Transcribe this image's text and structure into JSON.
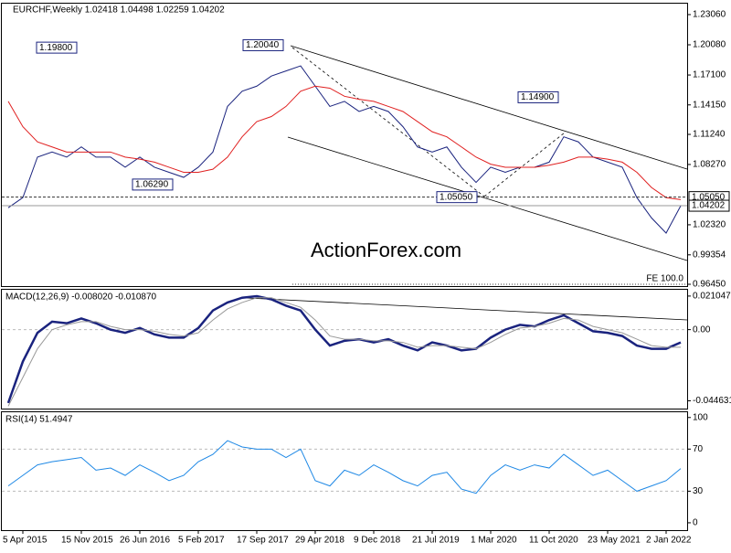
{
  "chart_data": [
    {
      "type": "line",
      "title": "EURCHF,Weekly 1.02418 1.04498 1.02259 1.04202",
      "watermark": "ActionForex.com",
      "categories": [
        null,
        "5 Apr 2015",
        null,
        null,
        null,
        "15 Nov 2015",
        null,
        null,
        null,
        "26 Jun 2016",
        null,
        null,
        null,
        "5 Feb 2017",
        null,
        null,
        null,
        "17 Sep 2017",
        null,
        null,
        null,
        "29 Apr 2018",
        null,
        null,
        null,
        "9 Dec 2018",
        null,
        null,
        null,
        "21 Jul 2019",
        null,
        null,
        null,
        "1 Mar 2020",
        null,
        null,
        null,
        "11 Oct 2020",
        null,
        null,
        null,
        "23 May 2021",
        null,
        null,
        null,
        "2 Jan 2022",
        null
      ],
      "series": [
        {
          "name": "EURCHF",
          "color": "#1a237e",
          "values": [
            1.04,
            1.05,
            1.09,
            1.095,
            1.09,
            1.1,
            1.09,
            1.09,
            1.08,
            1.09,
            1.08,
            1.075,
            1.07,
            1.08,
            1.095,
            1.14,
            1.155,
            1.16,
            1.17,
            1.175,
            1.18,
            1.16,
            1.14,
            1.145,
            1.135,
            1.14,
            1.135,
            1.12,
            1.1,
            1.095,
            1.1,
            1.08,
            1.065,
            1.08,
            1.075,
            1.08,
            1.08,
            1.085,
            1.11,
            1.105,
            1.09,
            1.085,
            1.08,
            1.05,
            1.03,
            1.015,
            1.042
          ]
        },
        {
          "name": "MA",
          "color": "#e02020",
          "values": [
            1.145,
            1.12,
            1.105,
            1.1,
            1.095,
            1.095,
            1.095,
            1.095,
            1.09,
            1.088,
            1.085,
            1.08,
            1.075,
            1.075,
            1.078,
            1.09,
            1.11,
            1.125,
            1.13,
            1.14,
            1.155,
            1.16,
            1.158,
            1.15,
            1.147,
            1.145,
            1.14,
            1.135,
            1.125,
            1.115,
            1.11,
            1.1,
            1.09,
            1.083,
            1.08,
            1.08,
            1.08,
            1.082,
            1.085,
            1.09,
            1.09,
            1.088,
            1.085,
            1.075,
            1.06,
            1.05,
            1.048
          ]
        }
      ],
      "ylim": [
        0.9627,
        1.2414
      ],
      "yticks": [
        {
          "value": 1.2306,
          "label": "1.23060"
        },
        {
          "value": 1.2008,
          "label": "1.20080"
        },
        {
          "value": 1.171,
          "label": "1.17100"
        },
        {
          "value": 1.1415,
          "label": "1.14150"
        },
        {
          "value": 1.1124,
          "label": "1.11240"
        },
        {
          "value": 1.0827,
          "label": "1.08270"
        },
        {
          "value": 1.0232,
          "label": "1.02320"
        },
        {
          "value": 0.99354,
          "label": "0.99354"
        },
        {
          "value": 0.9645,
          "label": "0.96450"
        }
      ],
      "price_marks": [
        {
          "value": 1.0505,
          "label": "1.05050"
        },
        {
          "value": 1.04202,
          "label": "1.04202"
        }
      ],
      "annotations": [
        {
          "value": 1.198,
          "label": "1.19800"
        },
        {
          "value": 1.0629,
          "label": "1.06290"
        },
        {
          "value": 1.2004,
          "label": "1.20040"
        },
        {
          "value": 1.0505,
          "label": "1.05050"
        },
        {
          "value": 1.149,
          "label": "1.14900"
        }
      ],
      "fe_label": "FE 100.0"
    },
    {
      "type": "line",
      "title": "MACD(12,26,9) -0.008020 -0.010870",
      "series": [
        {
          "name": "MACD",
          "color": "#1a237e",
          "values": [
            -0.046,
            -0.02,
            -0.002,
            0.005,
            0.004,
            0.007,
            0.004,
            0.0,
            -0.002,
            0.001,
            -0.003,
            -0.005,
            -0.005,
            0.001,
            0.012,
            0.017,
            0.02,
            0.021,
            0.019,
            0.015,
            0.012,
            0.0,
            -0.01,
            -0.007,
            -0.006,
            -0.008,
            -0.006,
            -0.01,
            -0.013,
            -0.008,
            -0.01,
            -0.013,
            -0.012,
            -0.005,
            0.0,
            0.003,
            0.002,
            0.006,
            0.009,
            0.004,
            -0.001,
            -0.002,
            -0.004,
            -0.01,
            -0.012,
            -0.012,
            -0.008
          ]
        },
        {
          "name": "Signal",
          "color": "#999999",
          "values": [
            -0.048,
            -0.03,
            -0.012,
            0.0,
            0.003,
            0.005,
            0.005,
            0.002,
            0.0,
            0.0,
            -0.001,
            -0.003,
            -0.004,
            -0.002,
            0.006,
            0.013,
            0.017,
            0.02,
            0.02,
            0.017,
            0.014,
            0.006,
            -0.004,
            -0.006,
            -0.006,
            -0.007,
            -0.007,
            -0.008,
            -0.011,
            -0.01,
            -0.01,
            -0.011,
            -0.012,
            -0.008,
            -0.003,
            0.001,
            0.002,
            0.004,
            0.007,
            0.006,
            0.002,
            0.0,
            -0.002,
            -0.006,
            -0.01,
            -0.011,
            -0.011
          ]
        }
      ],
      "ylim": [
        -0.0495,
        0.025
      ],
      "yticks": [
        0.021047,
        {
          "value": 0,
          "label": "0.00"
        },
        -0.044631
      ]
    },
    {
      "type": "line",
      "title": "RSI(14) 51.4947",
      "series": [
        {
          "name": "RSI",
          "color": "#1e88e5",
          "values": [
            35,
            45,
            55,
            58,
            60,
            62,
            50,
            52,
            45,
            55,
            48,
            40,
            45,
            58,
            65,
            78,
            72,
            70,
            70,
            62,
            70,
            40,
            35,
            50,
            45,
            55,
            48,
            40,
            35,
            45,
            48,
            32,
            28,
            45,
            55,
            50,
            55,
            52,
            65,
            55,
            45,
            50,
            40,
            30,
            35,
            40,
            51.4947
          ]
        }
      ],
      "ylim": [
        -7,
        105
      ],
      "yticks": [
        100,
        70,
        30,
        0
      ]
    }
  ]
}
